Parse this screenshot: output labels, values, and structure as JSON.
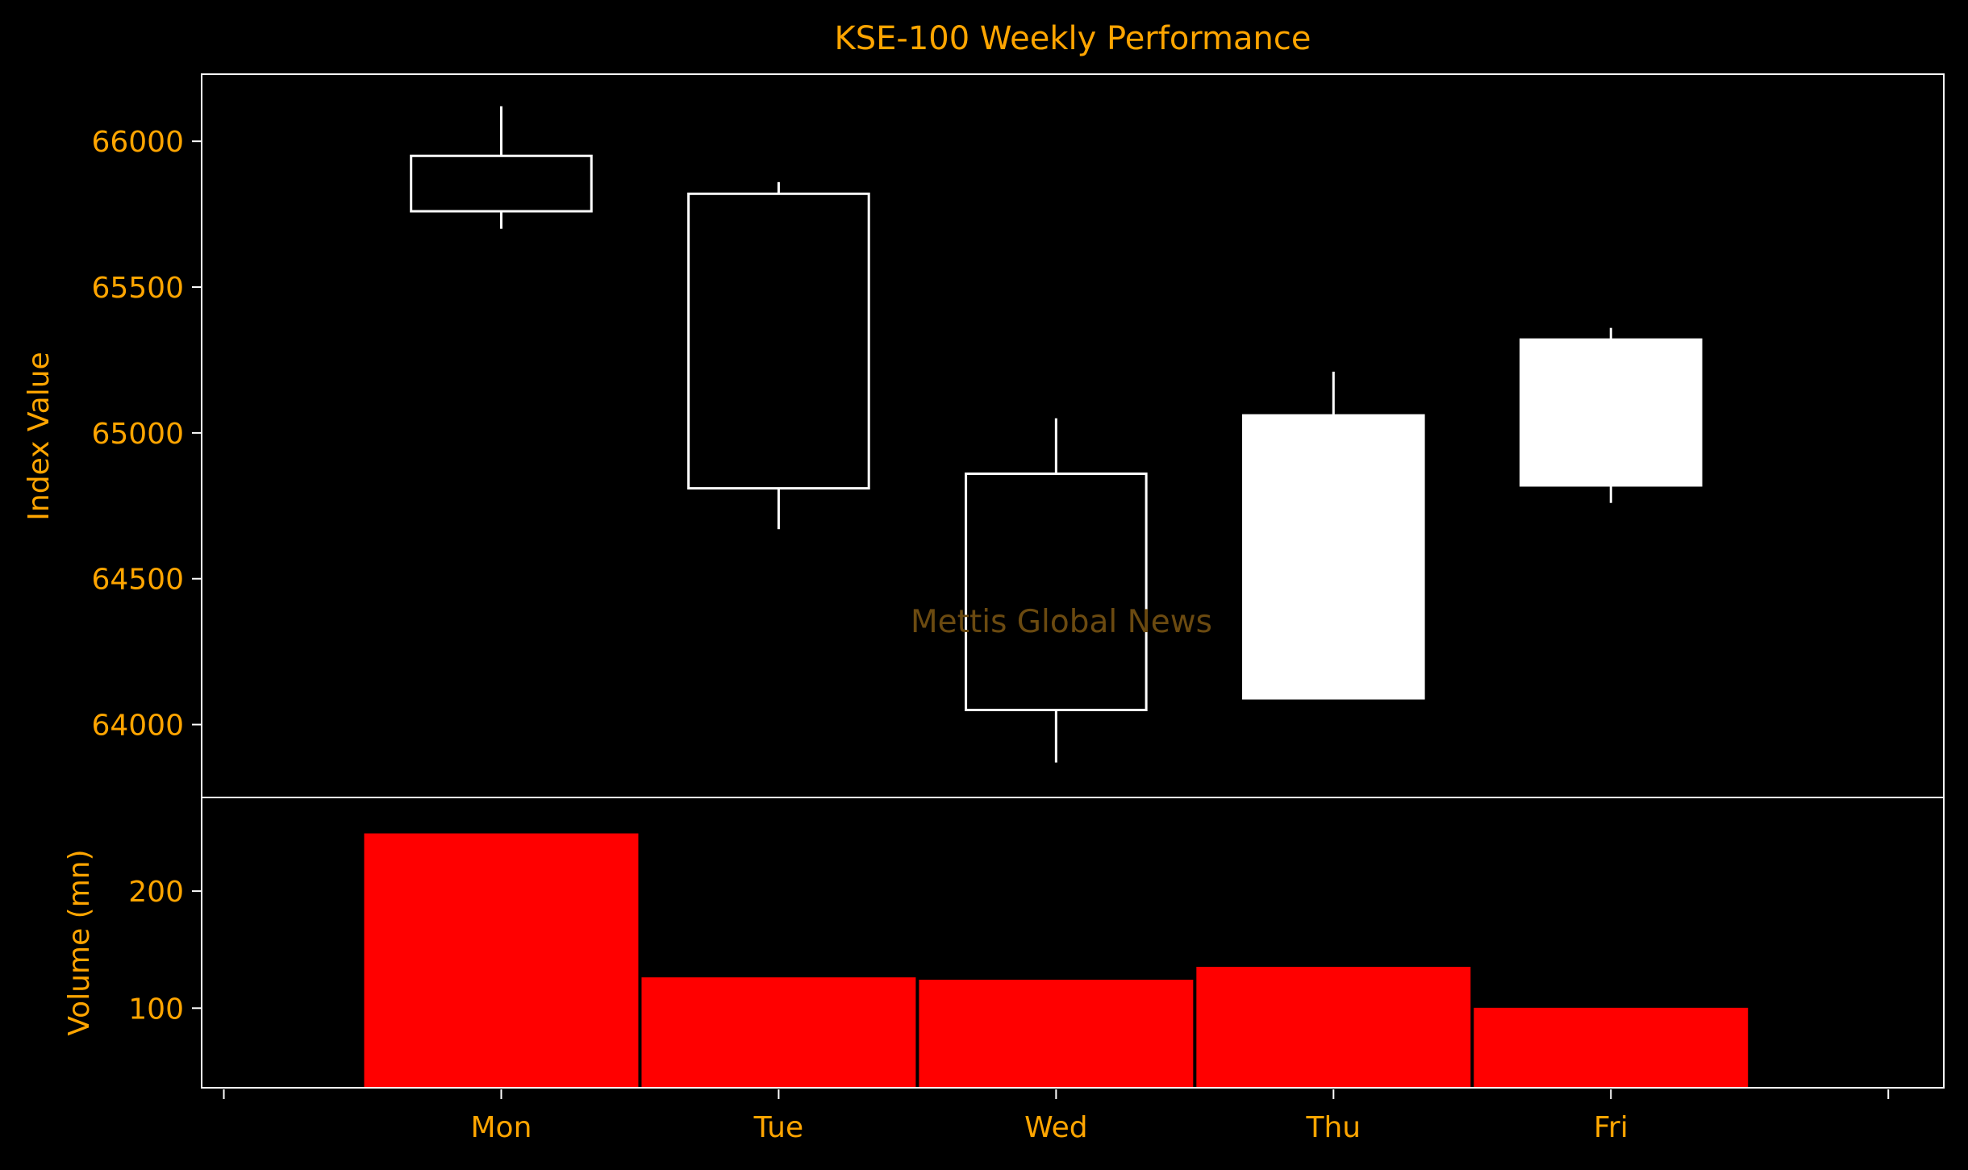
{
  "chart_data": {
    "type": "candlestick",
    "title": "KSE-100 Weekly Performance",
    "watermark": "Mettis Global News",
    "categories": [
      "Mon",
      "Tue",
      "Wed",
      "Thu",
      "Fri"
    ],
    "ohlc": [
      {
        "open": 65950,
        "high": 66120,
        "low": 65700,
        "close": 65760
      },
      {
        "open": 65820,
        "high": 65860,
        "low": 64670,
        "close": 64810
      },
      {
        "open": 64860,
        "high": 65050,
        "low": 63870,
        "close": 64050
      },
      {
        "open": 64090,
        "high": 65210,
        "low": 64090,
        "close": 65060
      },
      {
        "open": 64820,
        "high": 65360,
        "low": 64760,
        "close": 65320
      }
    ],
    "volume": [
      250,
      127,
      125,
      136,
      101
    ],
    "price_axis": {
      "label": "Index Value",
      "range": [
        63750,
        66230
      ],
      "ticks": [
        64000,
        64500,
        65000,
        65500,
        66000
      ]
    },
    "volume_axis": {
      "label": "Volume (mn)",
      "range": [
        32,
        280
      ],
      "ticks": [
        100,
        200
      ]
    },
    "colors": {
      "background": "#000000",
      "text": "#ffa500",
      "frame": "#ffffff",
      "candle": "#ffffff",
      "volume_bar": "#ff0000",
      "watermark": "#6b4a10"
    },
    "grid": false
  }
}
